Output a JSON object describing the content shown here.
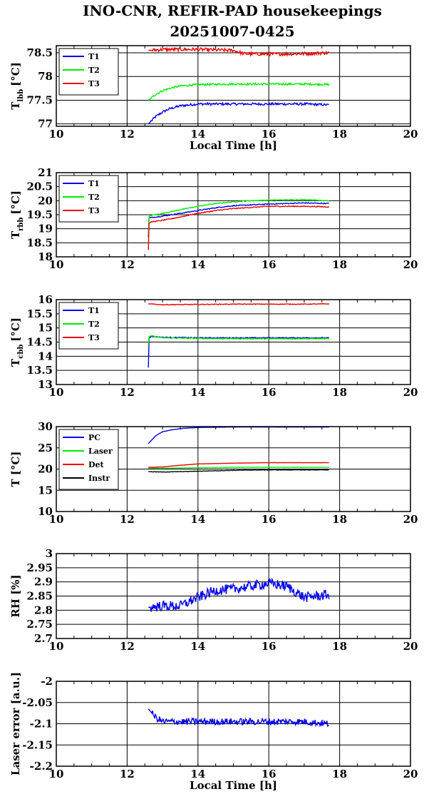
{
  "title_line1": "INO-CNR, REFIR-PAD housekeepings",
  "title_line2": "20251007-0425",
  "colors": {
    "blue": "#0000ee",
    "green": "#00ee00",
    "red": "#ee0000",
    "black": "#000000"
  },
  "chart_data": [
    {
      "type": "line",
      "id": "lbb",
      "ylabel": "T",
      "ylabel_sub": "lbb",
      "ylabel_unit": "[°C]",
      "xlabel": "Local Time [h]",
      "xlim": [
        10,
        20
      ],
      "ylim": [
        76.95,
        78.65
      ],
      "xticks": [
        "10",
        "12",
        "14",
        "16",
        "18",
        "20"
      ],
      "yticks": [
        77,
        77.5,
        78,
        78.5
      ],
      "ytick_labels": [
        "77",
        "77.5",
        "78",
        "78.5"
      ],
      "grid": true,
      "legend": "top-left",
      "series": [
        {
          "name": "T1",
          "color": "#0000ee",
          "x": [
            12.6,
            12.8,
            13.0,
            13.2,
            13.5,
            14.0,
            15.0,
            16.0,
            17.0,
            17.7
          ],
          "y": [
            77.0,
            77.15,
            77.25,
            77.32,
            77.38,
            77.42,
            77.42,
            77.42,
            77.42,
            77.4
          ],
          "noise": 0.025
        },
        {
          "name": "T2",
          "color": "#00ee00",
          "x": [
            12.6,
            12.8,
            13.0,
            13.2,
            13.5,
            14.0,
            15.0,
            16.0,
            17.0,
            17.7
          ],
          "y": [
            77.5,
            77.62,
            77.7,
            77.75,
            77.8,
            77.83,
            77.84,
            77.84,
            77.84,
            77.83
          ],
          "noise": 0.02
        },
        {
          "name": "T3",
          "color": "#ee0000",
          "x": [
            12.6,
            13.0,
            14.0,
            15.0,
            15.3,
            16.0,
            17.0,
            17.7
          ],
          "y": [
            78.55,
            78.57,
            78.57,
            78.55,
            78.48,
            78.47,
            78.48,
            78.5
          ],
          "noise": 0.035
        }
      ]
    },
    {
      "type": "line",
      "id": "rbb",
      "ylabel": "T",
      "ylabel_sub": "rbb",
      "ylabel_unit": "[°C]",
      "xlabel": "",
      "xlim": [
        10,
        20
      ],
      "ylim": [
        18,
        21
      ],
      "xticks": [
        "10",
        "12",
        "14",
        "16",
        "18",
        "20"
      ],
      "yticks": [
        18,
        18.5,
        19,
        19.5,
        20,
        20.5,
        21
      ],
      "ytick_labels": [
        "18",
        "18.5",
        "19",
        "19.5",
        "20",
        "20.5",
        "21"
      ],
      "grid": true,
      "legend": "top-left",
      "series": [
        {
          "name": "T1",
          "color": "#0000ee",
          "x": [
            12.6,
            12.62,
            12.7,
            13.0,
            13.5,
            14.0,
            14.5,
            15.0,
            15.5,
            16.0,
            16.5,
            17.0,
            17.7
          ],
          "y": [
            18.7,
            19.4,
            19.4,
            19.45,
            19.55,
            19.65,
            19.75,
            19.82,
            19.85,
            19.88,
            19.9,
            19.92,
            19.9
          ],
          "noise": 0.015
        },
        {
          "name": "T2",
          "color": "#00ee00",
          "x": [
            12.6,
            12.62,
            12.7,
            13.0,
            13.5,
            14.0,
            14.5,
            15.0,
            15.5,
            16.0,
            16.5,
            17.0,
            17.7
          ],
          "y": [
            18.8,
            19.45,
            19.48,
            19.55,
            19.68,
            19.8,
            19.9,
            19.96,
            20.0,
            20.02,
            20.03,
            20.04,
            20.0
          ],
          "noise": 0.015
        },
        {
          "name": "T3",
          "color": "#ee0000",
          "x": [
            12.6,
            12.62,
            12.7,
            13.0,
            13.5,
            14.0,
            14.5,
            15.0,
            15.5,
            16.0,
            16.5,
            17.0,
            17.7
          ],
          "y": [
            18.25,
            19.2,
            19.25,
            19.3,
            19.42,
            19.55,
            19.65,
            19.72,
            19.76,
            19.8,
            19.8,
            19.8,
            19.78
          ],
          "noise": 0.015
        }
      ]
    },
    {
      "type": "line",
      "id": "cbb",
      "ylabel": "T",
      "ylabel_sub": "cbb",
      "ylabel_unit": "[°C]",
      "xlabel": "",
      "xlim": [
        10,
        20
      ],
      "ylim": [
        13,
        16
      ],
      "xticks": [
        "10",
        "12",
        "14",
        "16",
        "18",
        "20"
      ],
      "yticks": [
        13,
        13.5,
        14,
        14.5,
        15,
        15.5,
        16
      ],
      "ytick_labels": [
        "13",
        "13.5",
        "14",
        "14.5",
        "15",
        "15.5",
        "16"
      ],
      "grid": true,
      "legend": "top-left",
      "series": [
        {
          "name": "T1",
          "color": "#0000ee",
          "x": [
            12.6,
            12.62,
            12.7,
            13.0,
            14.0,
            15.0,
            16.0,
            17.0,
            17.7
          ],
          "y": [
            13.6,
            14.65,
            14.7,
            14.67,
            14.65,
            14.65,
            14.65,
            14.65,
            14.65
          ],
          "noise": 0.015
        },
        {
          "name": "T2",
          "color": "#00ee00",
          "x": [
            12.6,
            12.62,
            12.7,
            13.0,
            14.0,
            15.0,
            16.0,
            17.0,
            17.7
          ],
          "y": [
            14.4,
            14.7,
            14.72,
            14.65,
            14.63,
            14.62,
            14.62,
            14.62,
            14.62
          ],
          "noise": 0.015
        },
        {
          "name": "T3",
          "color": "#ee0000",
          "x": [
            12.6,
            13.0,
            14.0,
            15.0,
            16.0,
            17.0,
            17.7
          ],
          "y": [
            15.85,
            15.82,
            15.83,
            15.84,
            15.84,
            15.84,
            15.85
          ],
          "noise": 0.012
        }
      ]
    },
    {
      "type": "line",
      "id": "temps",
      "ylabel": "T [°C]",
      "ylabel_sub": "",
      "ylabel_unit": "",
      "xlabel": "",
      "xlim": [
        10,
        20
      ],
      "ylim": [
        10,
        30
      ],
      "xticks": [
        "10",
        "12",
        "14",
        "16",
        "18",
        "20"
      ],
      "yticks": [
        10,
        15,
        20,
        25,
        30
      ],
      "ytick_labels": [
        "10",
        "15",
        "20",
        "25",
        "30"
      ],
      "grid": true,
      "legend": "top-left",
      "series": [
        {
          "name": "PC",
          "color": "#0000ee",
          "x": [
            12.6,
            12.8,
            13.0,
            13.3,
            13.6,
            14.0,
            15.0,
            16.0,
            17.0,
            17.7
          ],
          "y": [
            26.0,
            27.8,
            28.8,
            29.3,
            29.6,
            29.8,
            29.9,
            29.9,
            29.9,
            29.9
          ],
          "noise": 0.02
        },
        {
          "name": "Laser",
          "color": "#00ee00",
          "x": [
            12.6,
            13.0,
            14.0,
            15.0,
            16.0,
            17.0,
            17.7
          ],
          "y": [
            20.2,
            20.2,
            20.3,
            20.4,
            20.4,
            20.4,
            20.4
          ],
          "noise": 0.03
        },
        {
          "name": "Det",
          "color": "#ee0000",
          "x": [
            12.6,
            13.0,
            13.5,
            14.0,
            15.0,
            16.0,
            17.0,
            17.7
          ],
          "y": [
            20.4,
            20.5,
            20.9,
            21.2,
            21.4,
            21.5,
            21.5,
            21.5
          ],
          "noise": 0.02
        },
        {
          "name": "Instr",
          "color": "#000000",
          "x": [
            12.6,
            13.0,
            14.0,
            15.0,
            16.0,
            17.0,
            17.7
          ],
          "y": [
            19.4,
            19.3,
            19.5,
            19.7,
            19.8,
            19.8,
            19.8
          ],
          "noise": 0.05
        }
      ]
    },
    {
      "type": "line",
      "id": "rh",
      "ylabel": "RH [%]",
      "ylabel_sub": "",
      "ylabel_unit": "",
      "xlabel": "",
      "xlim": [
        10,
        20
      ],
      "ylim": [
        2.7,
        3.0
      ],
      "xticks": [
        "10",
        "12",
        "14",
        "16",
        "18",
        "20"
      ],
      "yticks": [
        2.7,
        2.75,
        2.8,
        2.85,
        2.9,
        2.95,
        3.0
      ],
      "ytick_labels": [
        "2.7",
        "2.75",
        "2.8",
        "2.85",
        "2.9",
        "2.95",
        "3"
      ],
      "grid": true,
      "legend": "none",
      "series": [
        {
          "name": "",
          "color": "#0000ee",
          "x": [
            12.6,
            13.0,
            13.5,
            14.0,
            14.5,
            15.0,
            15.5,
            16.0,
            16.5,
            17.0,
            17.7
          ],
          "y": [
            2.81,
            2.815,
            2.815,
            2.845,
            2.87,
            2.875,
            2.885,
            2.895,
            2.885,
            2.845,
            2.855
          ],
          "noise": 0.018
        }
      ]
    },
    {
      "type": "line",
      "id": "laser_err",
      "ylabel": "Laser error [a.u.]",
      "ylabel_sub": "",
      "ylabel_unit": "",
      "xlabel": "Local Time [h]",
      "xlim": [
        10,
        20
      ],
      "ylim": [
        -2.2,
        -2.0
      ],
      "xticks": [
        "10",
        "12",
        "14",
        "16",
        "18",
        "20"
      ],
      "yticks": [
        -2.2,
        -2.15,
        -2.1,
        -2.05,
        -2.0
      ],
      "ytick_labels": [
        "-2.2",
        "-2.15",
        "-2.1",
        "-2.05",
        "-2"
      ],
      "grid": true,
      "legend": "none",
      "series": [
        {
          "name": "",
          "color": "#0000ee",
          "x": [
            12.6,
            12.8,
            13.0,
            14.0,
            15.0,
            16.0,
            17.0,
            17.7
          ],
          "y": [
            -2.065,
            -2.085,
            -2.095,
            -2.095,
            -2.095,
            -2.095,
            -2.095,
            -2.1
          ],
          "noise": 0.008
        }
      ]
    }
  ]
}
